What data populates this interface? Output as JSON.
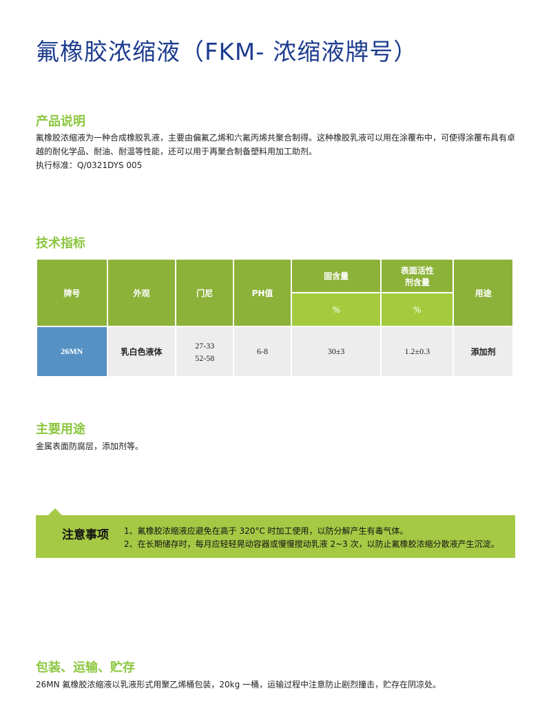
{
  "title": "氟橡胶浓缩液（FKM- 浓缩液牌号）",
  "description": {
    "heading": "产品说明",
    "text": "氟橡胶浓缩液为一种合成橡胶乳液，主要由偏氟乙烯和六氟丙烯共聚合制得。这种橡胶乳液可以用在涂覆布中，可使得涂覆布具有卓越的耐化学品、耐油、耐温等性能，还可以用于再聚合制备塑料用加工助剂。",
    "standard": "执行标准：Q/0321DYS 005"
  },
  "specs": {
    "heading": "技术指标",
    "headers": {
      "brand": "牌号",
      "appearance": "外观",
      "mooney": "门尼",
      "ph": "PH值",
      "solid": "固含量",
      "surfactant": "表面活性剂含量",
      "use": "用途",
      "solid_unit": "%",
      "surfactant_unit": "%"
    },
    "rows": [
      {
        "brand": "26MN",
        "appearance": "乳白色液体",
        "mooney1": "27-33",
        "mooney2": "52-58",
        "ph": "6-8",
        "solid": "30±3",
        "surfactant": "1.2±0.3",
        "use": "添加剂"
      }
    ]
  },
  "uses": {
    "heading": "主要用途",
    "text": "金属表面防腐层，添加剂等。"
  },
  "notes": {
    "label": "注意事项",
    "items": [
      "1、氟橡胶浓缩液应避免在高于 320°C 时加工使用，以防分解产生有毒气体。",
      "2、在长期储存时，每月应轻轻晃动容器或慢慢搅动乳液 2~3 次，以防止氟橡胶浓缩分散液产生沉淀。"
    ]
  },
  "packaging": {
    "heading": "包装、运输、贮存",
    "text": "26MN 氟橡胶浓缩液以乳液形式用聚乙烯桶包装，20kg 一桶，运输过程中注意防止剧烈撞击，贮存在阴凉处。"
  },
  "colors": {
    "title": "#1d3c8e",
    "heading": "#8cc63f",
    "table_header": "#8db23a",
    "table_subheader": "#a4cb3e",
    "brand_cell": "#5591c3",
    "notice": "#a5c945"
  }
}
